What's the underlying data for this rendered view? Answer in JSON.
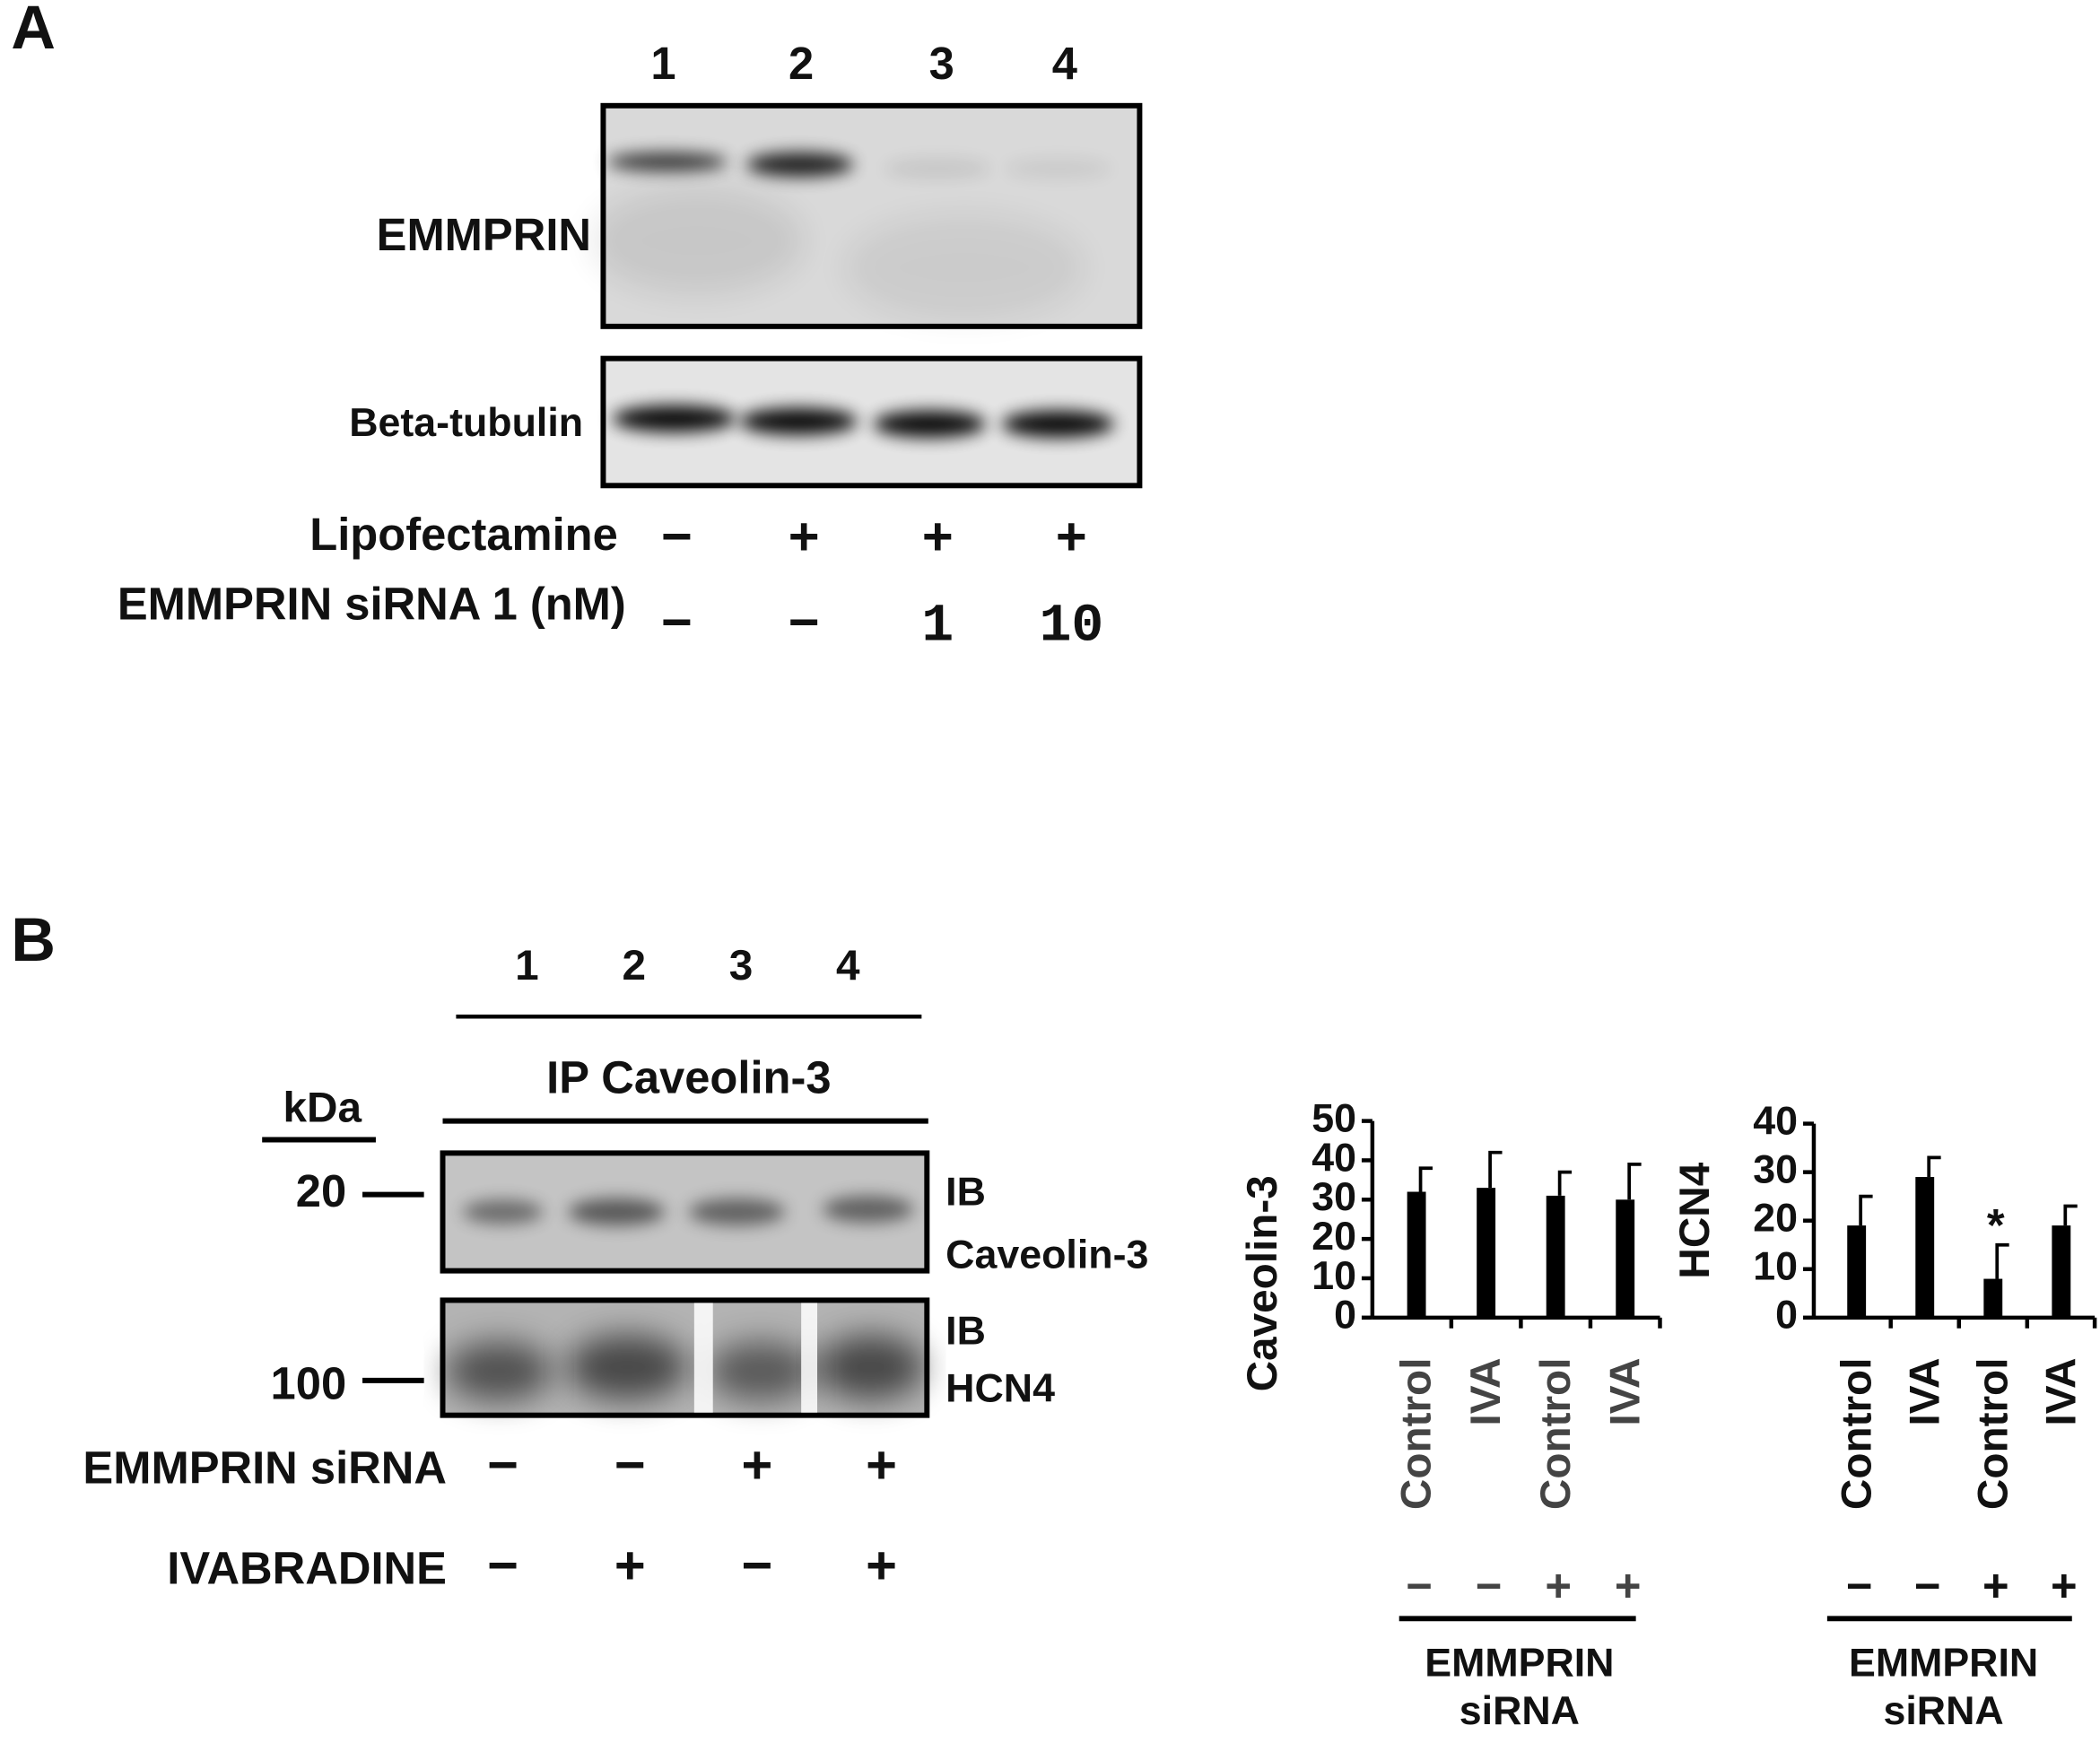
{
  "panel_a": {
    "label": "A",
    "lanes": [
      "1",
      "2",
      "3",
      "4"
    ],
    "blots": [
      {
        "label": "EMMPRIN"
      },
      {
        "label": "Beta-tubulin"
      }
    ],
    "conditions": [
      {
        "label": "Lipofectamine",
        "values": [
          "−",
          "+",
          "+",
          "+"
        ]
      },
      {
        "label": "EMMPRIN siRNA 1 (nM)",
        "values": [
          "−",
          "−",
          "1",
          "10"
        ]
      }
    ]
  },
  "panel_b": {
    "label": "B",
    "lanes": [
      "1",
      "2",
      "3",
      "4"
    ],
    "ip": "IP Caveolin-3",
    "kda_label": "kDa",
    "markers": [
      "20",
      "100"
    ],
    "blots": [
      {
        "ib": "IB",
        "target": "Caveolin-3"
      },
      {
        "ib": "IB",
        "target": "HCN4"
      }
    ],
    "conditions": [
      {
        "label": "EMMPRIN siRNA",
        "values": [
          "−",
          "−",
          "+",
          "+"
        ]
      },
      {
        "label": "IVABRADINE",
        "values": [
          "−",
          "+",
          "−",
          "+"
        ]
      }
    ]
  },
  "chart_data": [
    {
      "type": "bar",
      "y_label": "Caveolin-3",
      "categories": [
        "Control",
        "IVA",
        "Control",
        "IVA"
      ],
      "treatment": [
        "−",
        "−",
        "+",
        "+"
      ],
      "group_label": [
        "EMMPRIN",
        "siRNA"
      ],
      "values": [
        32,
        33,
        31,
        30
      ],
      "errors": [
        6,
        9,
        6,
        9
      ],
      "significance": [
        null,
        null,
        null,
        null
      ],
      "color": "#000000",
      "ylim": [
        0,
        50
      ],
      "yticks": [
        0,
        10,
        20,
        30,
        40,
        50
      ]
    },
    {
      "type": "bar",
      "y_label": "HCN4",
      "categories": [
        "Control",
        "IVA",
        "Control",
        "IVA"
      ],
      "treatment": [
        "−",
        "−",
        "+",
        "+"
      ],
      "group_label": [
        "EMMPRIN",
        "siRNA"
      ],
      "values": [
        19,
        29,
        8,
        19
      ],
      "errors": [
        6,
        4,
        7,
        4
      ],
      "significance": [
        null,
        null,
        "*",
        null
      ],
      "color": "#000000",
      "ylim": [
        0,
        40
      ],
      "yticks": [
        0,
        10,
        20,
        30,
        40
      ]
    }
  ]
}
